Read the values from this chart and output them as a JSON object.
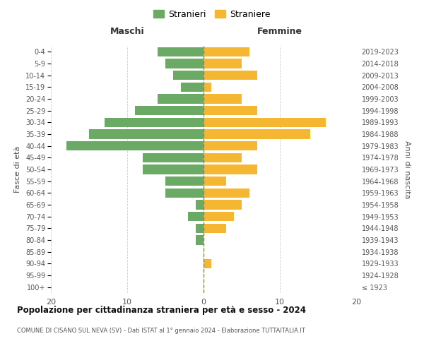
{
  "age_groups": [
    "100+",
    "95-99",
    "90-94",
    "85-89",
    "80-84",
    "75-79",
    "70-74",
    "65-69",
    "60-64",
    "55-59",
    "50-54",
    "45-49",
    "40-44",
    "35-39",
    "30-34",
    "25-29",
    "20-24",
    "15-19",
    "10-14",
    "5-9",
    "0-4"
  ],
  "birth_years": [
    "≤ 1923",
    "1924-1928",
    "1929-1933",
    "1934-1938",
    "1939-1943",
    "1944-1948",
    "1949-1953",
    "1954-1958",
    "1959-1963",
    "1964-1968",
    "1969-1973",
    "1974-1978",
    "1979-1983",
    "1984-1988",
    "1989-1993",
    "1994-1998",
    "1999-2003",
    "2004-2008",
    "2009-2013",
    "2014-2018",
    "2019-2023"
  ],
  "males": [
    0,
    0,
    0,
    0,
    1,
    1,
    2,
    1,
    5,
    5,
    8,
    8,
    18,
    15,
    13,
    9,
    6,
    3,
    4,
    5,
    6
  ],
  "females": [
    0,
    0,
    1,
    0,
    0,
    3,
    4,
    5,
    6,
    3,
    7,
    5,
    7,
    14,
    16,
    7,
    5,
    1,
    7,
    5,
    6
  ],
  "male_color": "#6aaa64",
  "female_color": "#f5b731",
  "background_color": "#ffffff",
  "grid_color": "#cccccc",
  "title": "Popolazione per cittadinanza straniera per età e sesso - 2024",
  "subtitle": "COMUNE DI CISANO SUL NEVA (SV) - Dati ISTAT al 1° gennaio 2024 - Elaborazione TUTTAITALIA.IT",
  "xlabel_left": "Maschi",
  "xlabel_right": "Femmine",
  "ylabel_left": "Fasce di età",
  "ylabel_right": "Anni di nascita",
  "legend_male": "Stranieri",
  "legend_female": "Straniere",
  "xlim": 20,
  "bar_height": 0.8,
  "dashed_line_color": "#888855"
}
